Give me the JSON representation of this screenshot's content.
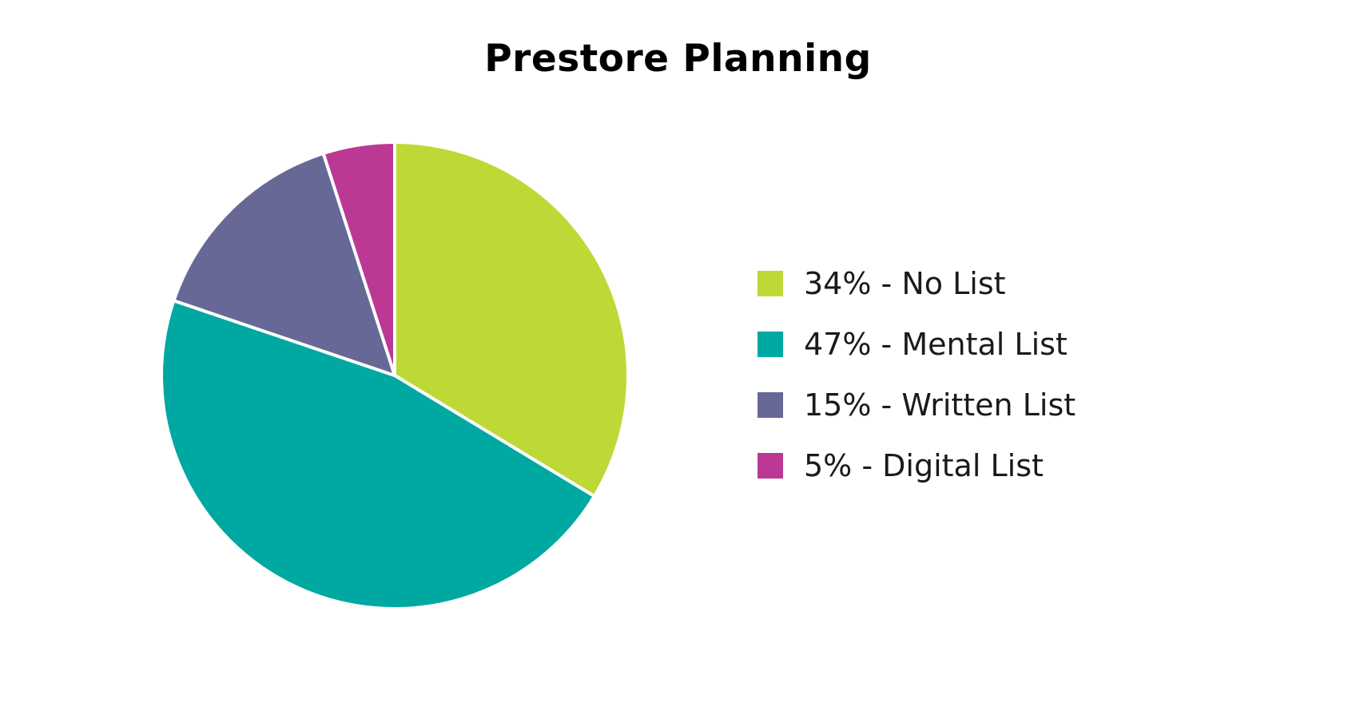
{
  "chart_data": {
    "type": "pie",
    "title": "Prestore Planning",
    "slices": [
      {
        "label": "34% - No List",
        "value": 34,
        "color": "#bcd936"
      },
      {
        "label": "47% - Mental List",
        "value": 47,
        "color": "#00a8a2"
      },
      {
        "label": "15% - Written List",
        "value": 15,
        "color": "#676896"
      },
      {
        "label": "5% - Digital List",
        "value": 5,
        "color": "#bb3994"
      }
    ],
    "start_angle": "12 o'clock",
    "direction": "clockwise",
    "legend_position": "right"
  }
}
